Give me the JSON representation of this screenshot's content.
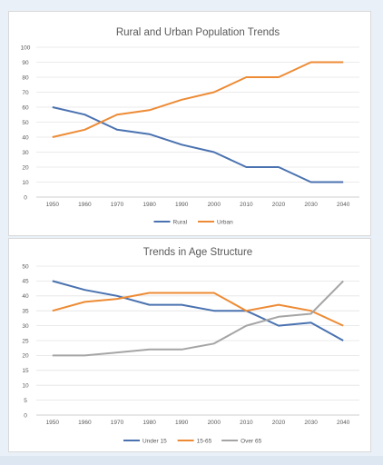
{
  "chart_data": [
    {
      "type": "line",
      "title": "Rural and Urban Population Trends",
      "x": [
        "1950",
        "1960",
        "1970",
        "1980",
        "1990",
        "2000",
        "2010",
        "2020",
        "2030",
        "2040"
      ],
      "ylim": [
        0,
        100
      ],
      "yticks": [
        "0",
        "10",
        "20",
        "30",
        "40",
        "50",
        "60",
        "70",
        "80",
        "90",
        "100"
      ],
      "grid": true,
      "legend": "bottom",
      "series": [
        {
          "name": "Rural",
          "color": "#4a72b0",
          "values": [
            60,
            55,
            45,
            42,
            35,
            30,
            20,
            20,
            10,
            10
          ]
        },
        {
          "name": "Urban",
          "color": "#ed8b35",
          "values": [
            40,
            45,
            55,
            58,
            65,
            70,
            80,
            80,
            90,
            90
          ]
        }
      ]
    },
    {
      "type": "line",
      "title": "Trends in Age Structure",
      "x": [
        "1950",
        "1960",
        "1970",
        "1980",
        "1990",
        "2000",
        "2010",
        "2020",
        "2030",
        "2040"
      ],
      "ylim": [
        0,
        50
      ],
      "yticks": [
        "0",
        "5",
        "10",
        "15",
        "20",
        "25",
        "30",
        "35",
        "40",
        "45",
        "50"
      ],
      "grid": true,
      "legend": "bottom",
      "series": [
        {
          "name": "Under 15",
          "color": "#4a72b0",
          "values": [
            45,
            42,
            40,
            37,
            37,
            35,
            35,
            30,
            31,
            25
          ]
        },
        {
          "name": "15-65",
          "color": "#ed8b35",
          "values": [
            35,
            38,
            39,
            41,
            41,
            41,
            35,
            37,
            35,
            30
          ]
        },
        {
          "name": "Over 65",
          "color": "#a5a5a5",
          "values": [
            20,
            20,
            21,
            22,
            22,
            24,
            30,
            33,
            34,
            45
          ]
        }
      ]
    }
  ]
}
